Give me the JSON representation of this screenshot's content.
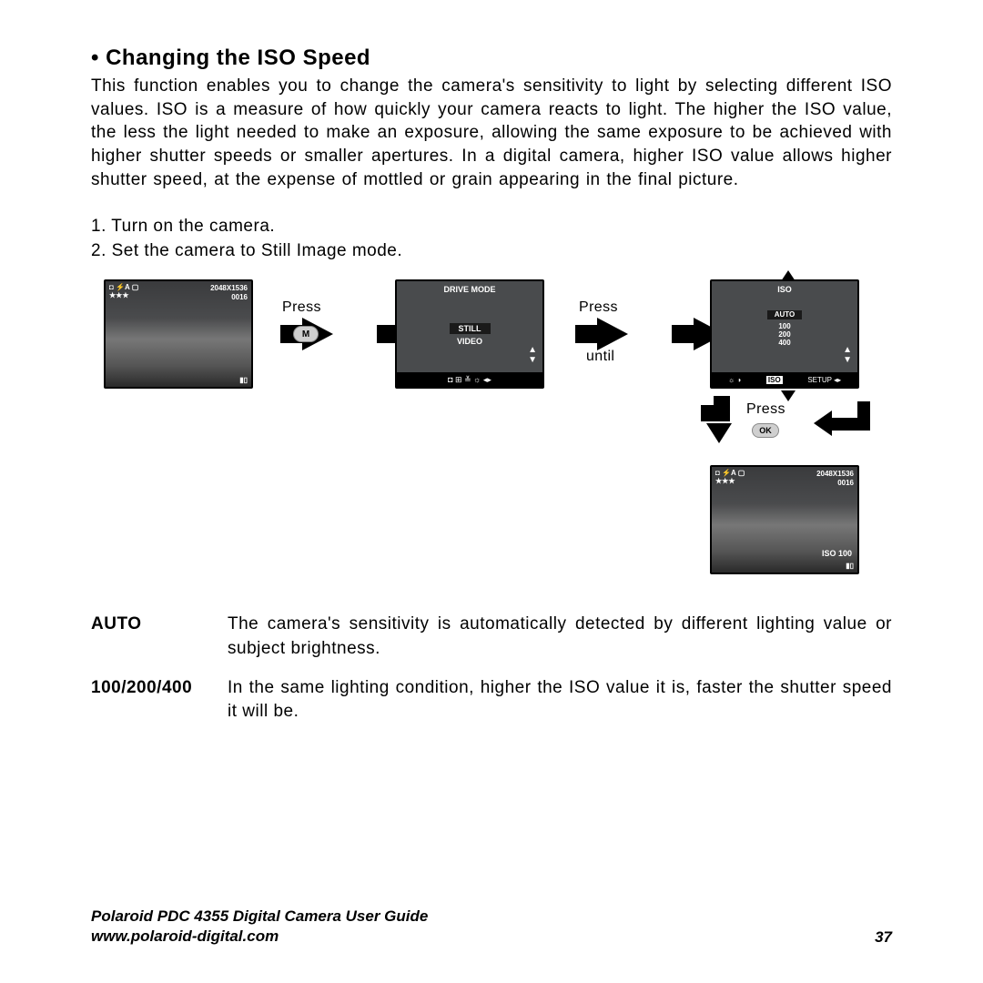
{
  "heading": "• Changing the ISO Speed",
  "intro": "This function enables you to change the camera's sensitivity to light by selecting different ISO values. ISO is a measure of how quickly your camera reacts to light. The higher the ISO value, the less the light needed to make an exposure, allowing the same exposure to be achieved with higher shutter speeds or smaller apertures. In a digital camera, higher ISO value allows higher shutter speed, at the expense of mottled or grain appearing in the final picture.",
  "steps": {
    "s1": "1.  Turn on the camera.",
    "s2": "2.  Set the camera to Still Image mode."
  },
  "labels": {
    "press": "Press",
    "until": "until",
    "m": "M",
    "ok": "OK"
  },
  "lcd1": {
    "topLeftLine1": "◘ ⚡A ▢",
    "topLeftLine2": "★★★",
    "resolution": "2048X1536",
    "count": "0016",
    "battery": "▮▯"
  },
  "lcd2": {
    "title": "DRIVE MODE",
    "opt1": "STILL",
    "opt2": "VIDEO",
    "bar": "◘   ⊞   ≚   ☼   ◂▸"
  },
  "lcd3": {
    "title": "ISO",
    "opt1": "AUTO",
    "opt2": "100",
    "opt3": "200",
    "opt4": "400",
    "barLeft": "☼    ◑",
    "barIso": "ISO",
    "barRight": "SETUP   ◂▸"
  },
  "lcd4": {
    "topLeftLine1": "◘ ⚡A ▢",
    "topLeftLine2": "★★★",
    "resolution": "2048X1536",
    "count": "0016",
    "iso": "ISO 100",
    "battery": "▮▯"
  },
  "definitions": {
    "term1": "AUTO",
    "desc1": "The camera's sensitivity is automatically detected by different lighting value or subject brightness.",
    "term2": "100/200/400",
    "desc2": "In the same lighting condition, higher the ISO value it is, faster the shutter speed it will be."
  },
  "footer": {
    "title": "Polaroid PDC 4355 Digital Camera User Guide",
    "url": "www.polaroid-digital.com",
    "page": "37"
  }
}
